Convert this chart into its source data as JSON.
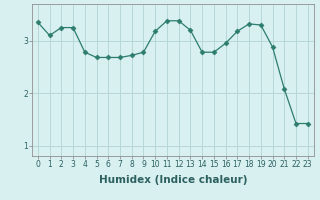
{
  "x": [
    0,
    1,
    2,
    3,
    4,
    5,
    6,
    7,
    8,
    9,
    10,
    11,
    12,
    13,
    14,
    15,
    16,
    17,
    18,
    19,
    20,
    21,
    22,
    23
  ],
  "y": [
    3.35,
    3.1,
    3.25,
    3.25,
    2.78,
    2.68,
    2.68,
    2.68,
    2.72,
    2.78,
    3.18,
    3.38,
    3.38,
    3.2,
    2.78,
    2.78,
    2.95,
    3.18,
    3.32,
    3.3,
    2.88,
    2.08,
    1.42,
    1.42
  ],
  "line_color": "#2d7d6e",
  "marker": "D",
  "marker_size": 2.5,
  "bg_color": "#d8f0f0",
  "grid_color": "#b8d8d8",
  "xlabel": "Humidex (Indice chaleur)",
  "xlim": [
    -0.5,
    23.5
  ],
  "ylim": [
    0.8,
    3.7
  ],
  "yticks": [
    1,
    2,
    3
  ],
  "xticks": [
    0,
    1,
    2,
    3,
    4,
    5,
    6,
    7,
    8,
    9,
    10,
    11,
    12,
    13,
    14,
    15,
    16,
    17,
    18,
    19,
    20,
    21,
    22,
    23
  ],
  "tick_fontsize": 5.5,
  "label_fontsize": 7.5
}
